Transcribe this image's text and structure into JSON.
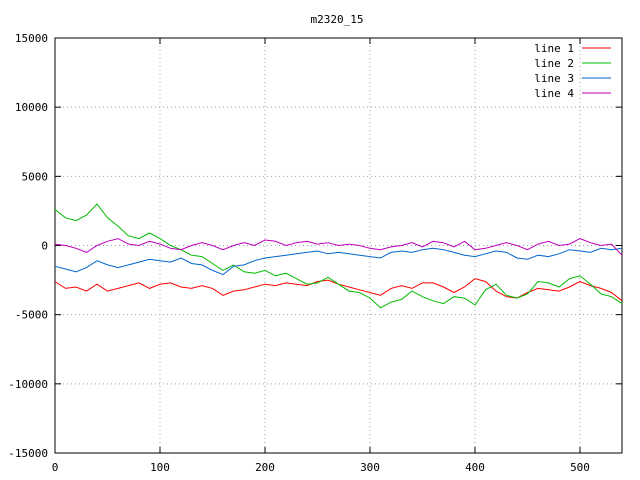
{
  "chart_data": {
    "type": "line",
    "title": "m2320_15",
    "xlabel": "",
    "ylabel": "",
    "xlim": [
      0,
      540
    ],
    "ylim": [
      -15000,
      15000
    ],
    "xticks": [
      0,
      100,
      200,
      300,
      400,
      500
    ],
    "yticks": [
      -15000,
      -10000,
      -5000,
      0,
      5000,
      10000,
      15000
    ],
    "grid": true,
    "legend_position": "top-right",
    "series": [
      {
        "name": "line 1",
        "color": "#ff0000",
        "x": [
          0,
          10,
          20,
          30,
          40,
          50,
          60,
          70,
          80,
          90,
          100,
          110,
          120,
          130,
          140,
          150,
          160,
          170,
          180,
          190,
          200,
          210,
          220,
          230,
          240,
          250,
          260,
          270,
          280,
          290,
          300,
          310,
          320,
          330,
          340,
          350,
          360,
          370,
          380,
          390,
          400,
          410,
          420,
          430,
          440,
          450,
          460,
          470,
          480,
          490,
          500,
          510,
          520,
          530,
          540
        ],
        "values": [
          -2600,
          -3100,
          -3000,
          -3300,
          -2800,
          -3300,
          -3100,
          -2900,
          -2700,
          -3100,
          -2800,
          -2700,
          -3000,
          -3100,
          -2900,
          -3100,
          -3600,
          -3300,
          -3200,
          -3000,
          -2800,
          -2900,
          -2700,
          -2800,
          -2900,
          -2600,
          -2500,
          -2800,
          -3000,
          -3200,
          -3400,
          -3600,
          -3100,
          -2900,
          -3100,
          -2700,
          -2700,
          -3000,
          -3400,
          -3000,
          -2400,
          -2600,
          -3300,
          -3700,
          -3800,
          -3400,
          -3100,
          -3200,
          -3300,
          -3000,
          -2600,
          -2900,
          -3100,
          -3400,
          -4000
        ]
      },
      {
        "name": "line 2",
        "color": "#00bb00",
        "x": [
          0,
          10,
          20,
          30,
          40,
          50,
          60,
          70,
          80,
          90,
          100,
          110,
          120,
          130,
          140,
          150,
          160,
          170,
          180,
          190,
          200,
          210,
          220,
          230,
          240,
          250,
          260,
          270,
          280,
          290,
          300,
          310,
          320,
          330,
          340,
          350,
          360,
          370,
          380,
          390,
          400,
          410,
          420,
          430,
          440,
          450,
          460,
          470,
          480,
          490,
          500,
          510,
          520,
          530,
          540
        ],
        "values": [
          2600,
          2000,
          1800,
          2200,
          3000,
          2000,
          1400,
          700,
          500,
          900,
          500,
          0,
          -300,
          -700,
          -800,
          -1300,
          -1800,
          -1400,
          -1900,
          -2000,
          -1800,
          -2200,
          -2000,
          -2400,
          -2800,
          -2700,
          -2300,
          -2800,
          -3300,
          -3400,
          -3800,
          -4500,
          -4100,
          -3900,
          -3300,
          -3700,
          -4000,
          -4200,
          -3700,
          -3800,
          -4300,
          -3200,
          -2800,
          -3600,
          -3800,
          -3500,
          -2600,
          -2700,
          -3000,
          -2400,
          -2200,
          -2800,
          -3500,
          -3700,
          -4200
        ]
      },
      {
        "name": "line 3",
        "color": "#0066cc",
        "x": [
          0,
          10,
          20,
          30,
          40,
          50,
          60,
          70,
          80,
          90,
          100,
          110,
          120,
          130,
          140,
          150,
          160,
          170,
          180,
          190,
          200,
          210,
          220,
          230,
          240,
          250,
          260,
          270,
          280,
          290,
          300,
          310,
          320,
          330,
          340,
          350,
          360,
          370,
          380,
          390,
          400,
          410,
          420,
          430,
          440,
          450,
          460,
          470,
          480,
          490,
          500,
          510,
          520,
          530,
          540
        ],
        "values": [
          -1500,
          -1700,
          -1900,
          -1600,
          -1100,
          -1400,
          -1600,
          -1400,
          -1200,
          -1000,
          -1100,
          -1200,
          -900,
          -1300,
          -1400,
          -1800,
          -2100,
          -1500,
          -1400,
          -1100,
          -900,
          -800,
          -700,
          -600,
          -500,
          -400,
          -600,
          -500,
          -600,
          -700,
          -800,
          -900,
          -500,
          -400,
          -500,
          -300,
          -200,
          -300,
          -500,
          -700,
          -800,
          -600,
          -400,
          -500,
          -900,
          -1000,
          -700,
          -800,
          -600,
          -300,
          -400,
          -500,
          -200,
          -300,
          -200
        ]
      },
      {
        "name": "line 4",
        "color": "#bb00bb",
        "x": [
          0,
          10,
          20,
          30,
          40,
          50,
          60,
          70,
          80,
          90,
          100,
          110,
          120,
          130,
          140,
          150,
          160,
          170,
          180,
          190,
          200,
          210,
          220,
          230,
          240,
          250,
          260,
          270,
          280,
          290,
          300,
          310,
          320,
          330,
          340,
          350,
          360,
          370,
          380,
          390,
          400,
          410,
          420,
          430,
          440,
          450,
          460,
          470,
          480,
          490,
          500,
          510,
          520,
          530,
          540
        ],
        "values": [
          100,
          0,
          -200,
          -500,
          0,
          300,
          500,
          100,
          0,
          300,
          100,
          -200,
          -300,
          0,
          200,
          0,
          -300,
          0,
          200,
          0,
          400,
          300,
          0,
          200,
          300,
          100,
          200,
          0,
          100,
          0,
          -200,
          -300,
          -100,
          0,
          200,
          -100,
          300,
          200,
          -100,
          300,
          -300,
          -200,
          0,
          200,
          0,
          -300,
          100,
          300,
          0,
          100,
          500,
          200,
          0,
          100,
          -700
        ]
      }
    ]
  }
}
